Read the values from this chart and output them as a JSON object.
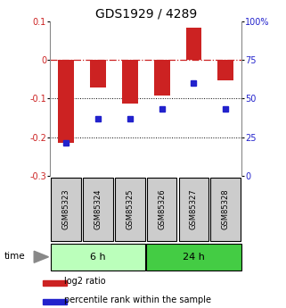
{
  "title": "GDS1929 / 4289",
  "samples": [
    "GSM85323",
    "GSM85324",
    "GSM85325",
    "GSM85326",
    "GSM85327",
    "GSM85328"
  ],
  "log2_ratio": [
    -0.215,
    -0.072,
    -0.112,
    -0.092,
    0.085,
    -0.052
  ],
  "percentile_rank": [
    21,
    37,
    37,
    43,
    60,
    43
  ],
  "groups": [
    {
      "label": "6 h",
      "indices": [
        0,
        1,
        2
      ],
      "color": "#bbffbb"
    },
    {
      "label": "24 h",
      "indices": [
        3,
        4,
        5
      ],
      "color": "#44cc44"
    }
  ],
  "bar_color": "#cc2222",
  "dot_color": "#2222cc",
  "ylim_left": [
    -0.3,
    0.1
  ],
  "ylim_right": [
    0,
    100
  ],
  "yticks_left": [
    0.1,
    0.0,
    -0.1,
    -0.2,
    -0.3
  ],
  "yticks_right": [
    100,
    75,
    50,
    25,
    0
  ],
  "ytick_labels_left": [
    "0.1",
    "0",
    "-0.1",
    "-0.2",
    "-0.3"
  ],
  "ytick_labels_right": [
    "100%",
    "75",
    "50",
    "25",
    "0"
  ],
  "hline_zero_color": "#cc2222",
  "hline_dot1": -0.1,
  "hline_dot2": -0.2,
  "background_color": "#ffffff",
  "title_fontsize": 10,
  "tick_fontsize": 7,
  "sample_box_color": "#cccccc",
  "time_label": "time",
  "legend_log2": "log2 ratio",
  "legend_pct": "percentile rank within the sample"
}
